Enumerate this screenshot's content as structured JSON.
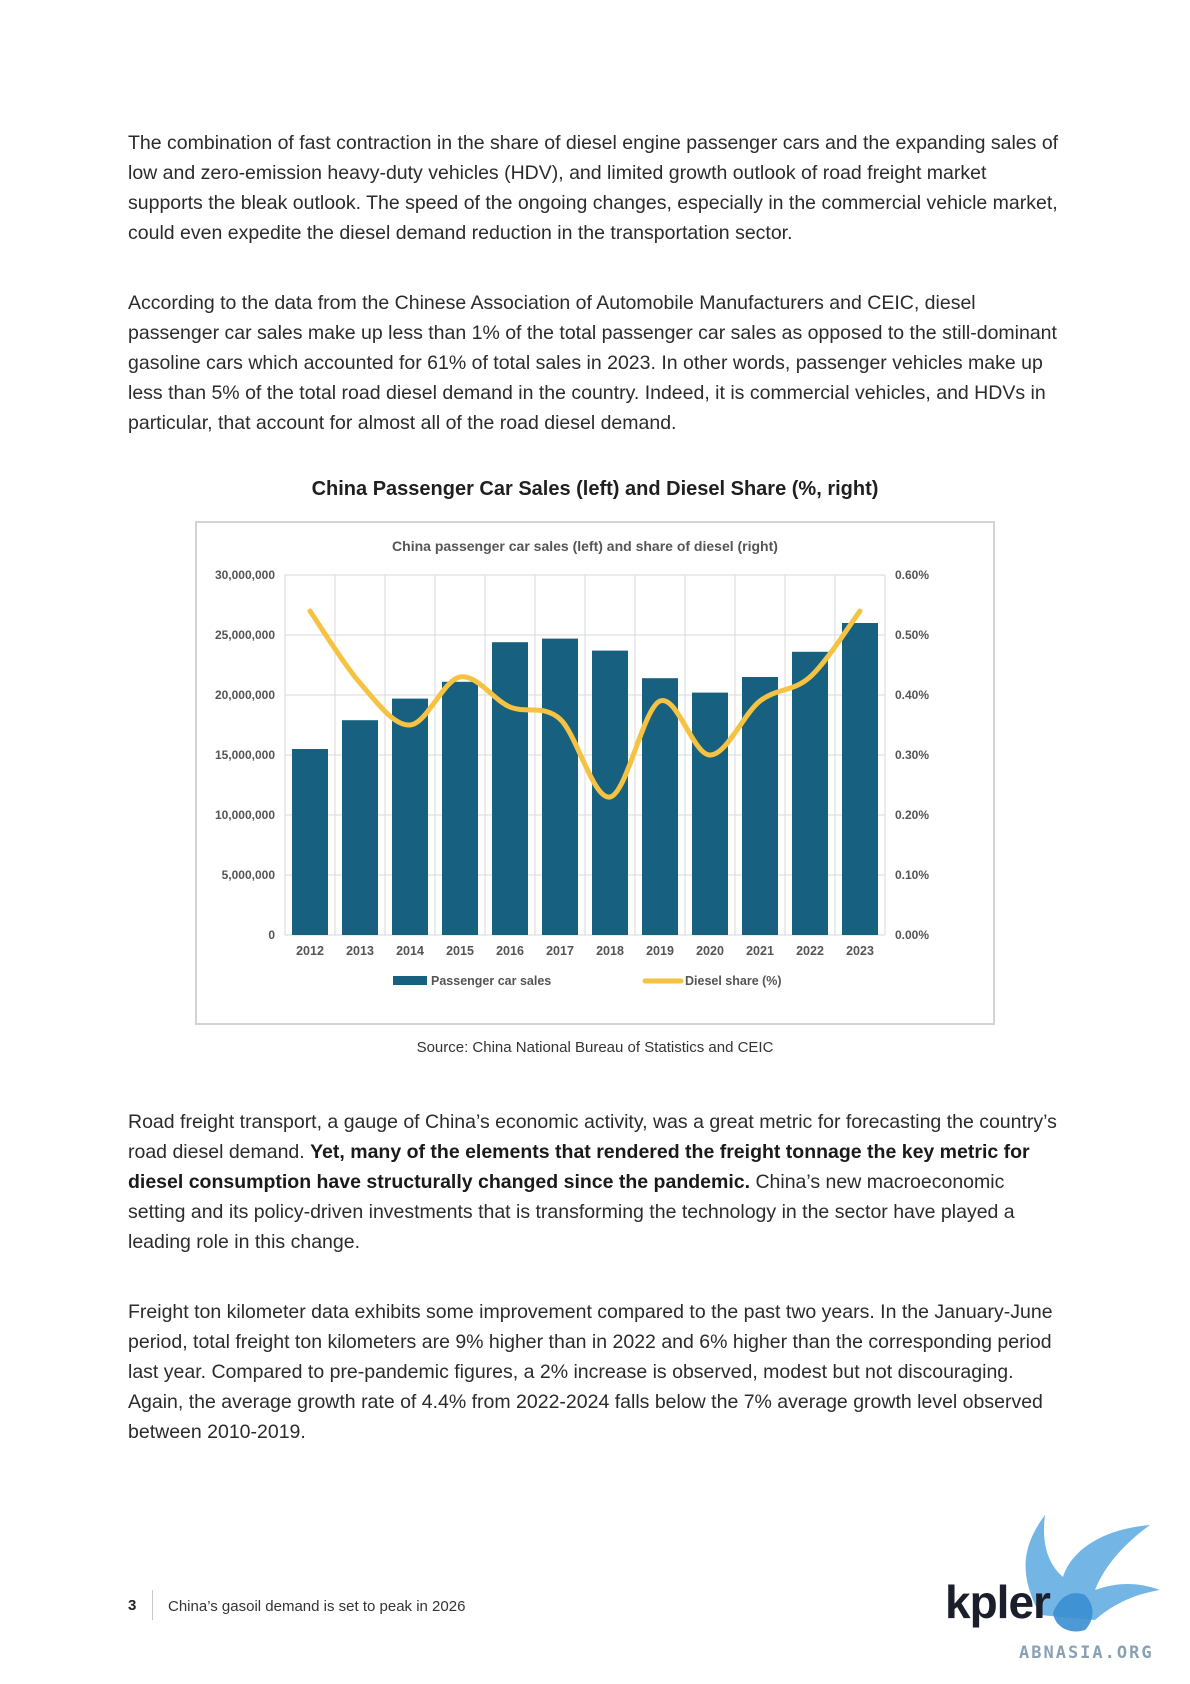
{
  "paragraphs": {
    "p1": "The combination of fast contraction in the share of diesel engine passenger cars and the expanding sales of low and zero-emission heavy-duty vehicles (HDV), and limited growth outlook of road freight market supports the bleak outlook. The speed of the ongoing changes, especially in the commercial vehicle market, could even expedite the diesel demand reduction in the transportation sector.",
    "p2": "According to the data from the Chinese Association of Automobile Manufacturers and CEIC, diesel passenger car sales make up less than 1% of the total passenger car sales as opposed to the still-dominant gasoline cars which accounted for 61% of total sales in 2023. In other words, passenger vehicles make up less than 5% of the total road diesel demand in the country. Indeed, it is commercial vehicles, and HDVs in particular, that account for almost all of the road diesel demand.",
    "p3_start": "Road freight transport, a gauge of China’s economic activity, was a great metric for forecasting the country’s road diesel demand.",
    "p3_bold": "Yet, many of the elements that rendered the freight tonnage the key metric for diesel consumption have structurally changed since the pandemic.",
    "p3_end": "China’s new macroeconomic setting and its policy-driven investments that is transforming the technology in the sector have played a leading role in this change.",
    "p4": "Freight ton kilometer data exhibits some improvement compared to the past two years. In the January-June period, total freight ton kilometers are 9% higher than in 2022 and 6% higher than the corresponding period last year. Compared to pre-pandemic figures, a 2% increase is observed, modest but not discouraging. Again, the average growth rate of 4.4% from 2022-2024 falls below the 7% average growth level observed between 2010-2019."
  },
  "figure": {
    "title": "China Passenger Car Sales (left) and Diesel Share (%, right)",
    "source": "Source: China National Bureau of Statistics and CEIC"
  },
  "chart_data": {
    "type": "bar",
    "title": "China passenger car sales (left) and share of diesel (right)",
    "categories": [
      "2012",
      "2013",
      "2014",
      "2015",
      "2016",
      "2017",
      "2018",
      "2019",
      "2020",
      "2021",
      "2022",
      "2023"
    ],
    "series": [
      {
        "name": "Passenger car sales",
        "type": "bar",
        "axis": "left",
        "color": "#17607f",
        "values": [
          15500000,
          17900000,
          19700000,
          21100000,
          24400000,
          24700000,
          23700000,
          21400000,
          20200000,
          21500000,
          23600000,
          26000000
        ]
      },
      {
        "name": "Diesel share (%)",
        "type": "line",
        "axis": "right",
        "color": "#f5c242",
        "values": [
          0.0054,
          0.0042,
          0.0035,
          0.0043,
          0.0038,
          0.0036,
          0.0023,
          0.0039,
          0.003,
          0.0039,
          0.0043,
          0.0054
        ]
      }
    ],
    "yleft": {
      "min": 0,
      "max": 30000000,
      "ticks": [
        "0",
        "5,000,000",
        "10,000,000",
        "15,000,000",
        "20,000,000",
        "25,000,000",
        "30,000,000"
      ]
    },
    "yright": {
      "min": 0,
      "max": 0.006,
      "ticks": [
        "0.00%",
        "0.10%",
        "0.20%",
        "0.30%",
        "0.40%",
        "0.50%",
        "0.60%"
      ]
    },
    "grid": true,
    "legend": "bottom"
  },
  "footer": {
    "page_number": "3",
    "title": "China’s gasoil demand is set to peak in 2026"
  },
  "logo": {
    "wordmark": "kpler",
    "watermark": "ABNASIA.ORG"
  }
}
